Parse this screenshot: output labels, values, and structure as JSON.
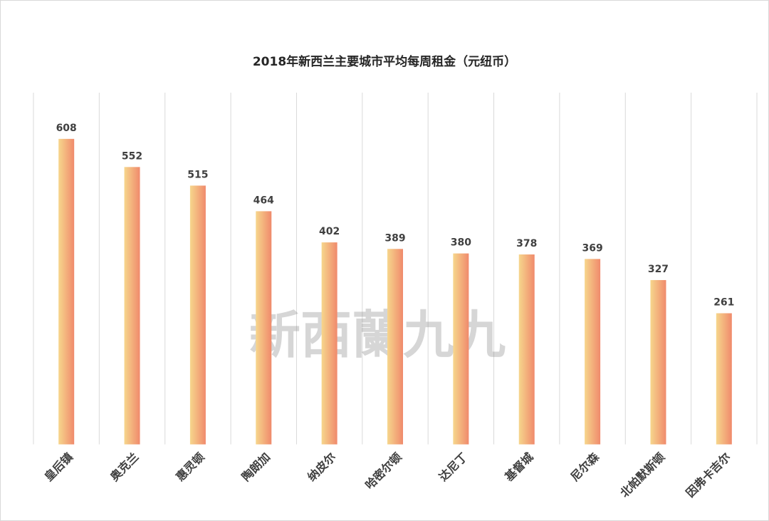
{
  "chart_data": {
    "type": "bar",
    "title": "2018年新西兰主要城市平均每周租金（元纽币）",
    "xlabel": "",
    "ylabel": "",
    "ylim": [
      0,
      700
    ],
    "grid": "vertical category separators",
    "legend": "none",
    "categories": [
      "皇后镇",
      "奥克兰",
      "惠灵顿",
      "陶朗加",
      "纳皮尔",
      "哈密尔顿",
      "达尼丁",
      "基督城",
      "尼尔森",
      "北帕默斯顿",
      "因弗卡吉尔"
    ],
    "values": [
      608,
      552,
      515,
      464,
      402,
      389,
      380,
      378,
      369,
      327,
      261
    ],
    "colors": {
      "bar_start": "#f6d68c",
      "bar_end": "#f08a6c",
      "grid": "#d9d9d9",
      "text": "#404040"
    }
  },
  "watermark": "新西蘭九九"
}
